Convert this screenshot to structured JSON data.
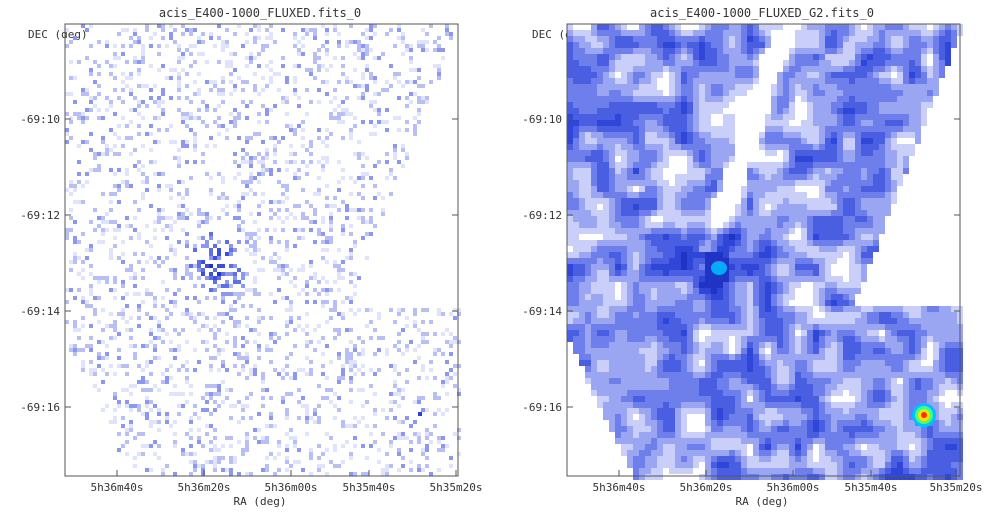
{
  "chart_data": [
    {
      "type": "heatmap",
      "title": "acis_E400-1000_FLUXED.fits_0",
      "xlabel": "RA (deg)",
      "ylabel": "DEC (deg)",
      "x_ticks": [
        "5h36m40s",
        "5h36m20s",
        "5h36m00s",
        "5h35m40s",
        "5h35m20s"
      ],
      "y_ticks": [
        "-69:10",
        "-69:12",
        "-69:14",
        "-69:16"
      ],
      "colormap": [
        "#ffffff",
        "#dfe3fb",
        "#b7bff5",
        "#8c97ee",
        "#5f6fe6",
        "#3b4fdc",
        "#2035c8"
      ],
      "grid": false,
      "style": "sparse"
    },
    {
      "type": "heatmap",
      "title": "acis_E400-1000_FLUXED_G2.fits_0",
      "xlabel": "RA (deg)",
      "ylabel": "DEC (deg)",
      "x_ticks": [
        "5h36m40s",
        "5h36m20s",
        "5h36m00s",
        "5h35m40s",
        "5h35m20s"
      ],
      "y_ticks": [
        "-69:10",
        "-69:12",
        "-69:14",
        "-69:16"
      ],
      "colormap": [
        "#ffffff",
        "#c9cff8",
        "#9aa6f2",
        "#6e7eea",
        "#4a5ee2",
        "#2f46d8",
        "#1f34c4"
      ],
      "hot_colors": [
        "#00c0ff",
        "#40ff80",
        "#ffe000",
        "#ff3000"
      ],
      "grid": false,
      "style": "smoothed"
    }
  ]
}
